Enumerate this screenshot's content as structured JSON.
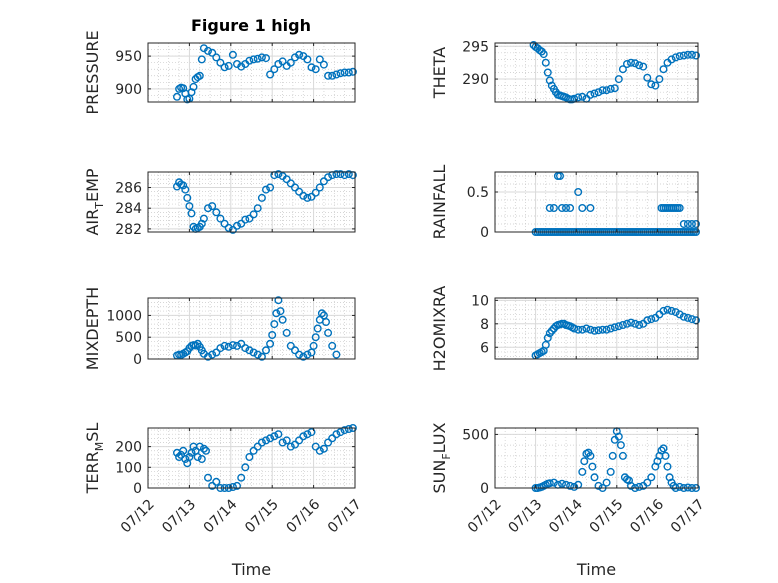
{
  "figure": {
    "title": "Figure 1 high",
    "marker_color": "#0072BD"
  },
  "chart_data": [
    {
      "type": "scatter",
      "ylabel": "PRESSURE",
      "xlabel": "",
      "title": "Figure 1 high",
      "xlim": [
        0,
        5
      ],
      "ylim": [
        880,
        970
      ],
      "yticks": [
        900,
        950
      ],
      "xticks": [],
      "x": [
        0.7,
        0.75,
        0.8,
        0.85,
        0.9,
        0.95,
        1.0,
        1.05,
        1.1,
        1.15,
        1.2,
        1.25,
        1.3,
        1.35,
        1.45,
        1.55,
        1.65,
        1.75,
        1.85,
        1.95,
        2.05,
        2.15,
        2.25,
        2.35,
        2.45,
        2.55,
        2.65,
        2.75,
        2.85,
        2.95,
        3.05,
        3.15,
        3.25,
        3.35,
        3.45,
        3.55,
        3.65,
        3.75,
        3.85,
        3.95,
        4.05,
        4.15,
        4.25,
        4.35,
        4.45,
        4.55,
        4.65,
        4.75,
        4.85,
        4.95
      ],
      "y": [
        888,
        900,
        902,
        901,
        893,
        884,
        885,
        895,
        903,
        915,
        918,
        920,
        945,
        962,
        958,
        955,
        948,
        940,
        933,
        935,
        952,
        938,
        934,
        938,
        943,
        945,
        946,
        948,
        947,
        922,
        930,
        938,
        942,
        935,
        940,
        948,
        952,
        950,
        945,
        933,
        930,
        945,
        937,
        920,
        920,
        922,
        924,
        925,
        925,
        926
      ]
    },
    {
      "type": "scatter",
      "ylabel": "THETA",
      "xlabel": "",
      "xlim": [
        0,
        5
      ],
      "ylim": [
        286.5,
        295.5
      ],
      "yticks": [
        290,
        295
      ],
      "xticks": [],
      "x": [
        0.95,
        1.0,
        1.05,
        1.1,
        1.15,
        1.2,
        1.25,
        1.3,
        1.35,
        1.4,
        1.45,
        1.5,
        1.55,
        1.6,
        1.65,
        1.7,
        1.75,
        1.8,
        1.85,
        1.9,
        1.95,
        2.05,
        2.15,
        2.25,
        2.35,
        2.45,
        2.55,
        2.65,
        2.75,
        2.85,
        2.95,
        3.05,
        3.15,
        3.25,
        3.35,
        3.45,
        3.55,
        3.65,
        3.75,
        3.85,
        3.95,
        4.05,
        4.15,
        4.25,
        4.35,
        4.45,
        4.55,
        4.65,
        4.75,
        4.85,
        4.95
      ],
      "y": [
        295.2,
        294.9,
        294.7,
        294.4,
        294.2,
        293.8,
        292.5,
        291.0,
        289.8,
        289.0,
        288.5,
        288.0,
        287.6,
        287.5,
        287.4,
        287.3,
        287.2,
        287.0,
        286.9,
        286.9,
        287.0,
        287.2,
        287.3,
        287.0,
        287.6,
        287.8,
        288.0,
        288.3,
        288.3,
        288.5,
        288.6,
        290.0,
        291.5,
        292.3,
        292.5,
        292.4,
        292.1,
        291.9,
        290.2,
        289.2,
        289.0,
        290.0,
        291.5,
        292.5,
        293.0,
        293.3,
        293.5,
        293.6,
        293.7,
        293.7,
        293.6
      ]
    },
    {
      "type": "scatter",
      "ylabel": "AIR_TEMP",
      "xlabel": "",
      "xlim": [
        0,
        5
      ],
      "ylim": [
        281.7,
        287.5
      ],
      "yticks": [
        282,
        284,
        286
      ],
      "xticks": [],
      "x": [
        0.7,
        0.75,
        0.8,
        0.85,
        0.9,
        0.95,
        1.0,
        1.05,
        1.1,
        1.15,
        1.2,
        1.25,
        1.3,
        1.35,
        1.45,
        1.55,
        1.65,
        1.75,
        1.85,
        1.95,
        2.05,
        2.15,
        2.25,
        2.35,
        2.45,
        2.55,
        2.65,
        2.75,
        2.85,
        2.95,
        3.05,
        3.15,
        3.25,
        3.35,
        3.45,
        3.55,
        3.65,
        3.75,
        3.85,
        3.95,
        4.05,
        4.15,
        4.25,
        4.35,
        4.45,
        4.55,
        4.65,
        4.75,
        4.85,
        4.95
      ],
      "y": [
        286.1,
        286.5,
        286.3,
        286.2,
        285.8,
        285.0,
        284.2,
        283.5,
        282.2,
        282.0,
        282.1,
        282.2,
        282.5,
        283.0,
        284.0,
        284.2,
        283.6,
        283.0,
        282.5,
        282.1,
        281.9,
        282.3,
        282.5,
        282.9,
        283.0,
        283.4,
        284.0,
        285.0,
        285.8,
        286.0,
        287.2,
        287.3,
        287.1,
        286.8,
        286.4,
        286.0,
        285.6,
        285.2,
        285.0,
        285.1,
        285.5,
        286.0,
        286.6,
        287.0,
        287.2,
        287.3,
        287.3,
        287.2,
        287.3,
        287.2
      ]
    },
    {
      "type": "scatter",
      "ylabel": "RAINFALL",
      "xlabel": "",
      "xlim": [
        0,
        5
      ],
      "ylim": [
        0,
        0.75
      ],
      "yticks": [
        0,
        0.5
      ],
      "xticks": [],
      "x": [
        1.0,
        1.05,
        1.1,
        1.15,
        1.2,
        1.25,
        1.3,
        1.35,
        1.4,
        1.45,
        1.5,
        1.55,
        1.6,
        1.65,
        1.7,
        1.75,
        1.8,
        1.85,
        1.9,
        1.95,
        2.0,
        2.05,
        2.1,
        2.15,
        2.2,
        2.25,
        2.3,
        2.35,
        2.4,
        2.45,
        2.5,
        2.55,
        2.6,
        2.65,
        2.7,
        2.75,
        2.8,
        2.85,
        2.9,
        2.95,
        3.0,
        3.05,
        3.1,
        3.15,
        3.2,
        3.25,
        3.3,
        3.35,
        3.4,
        3.45,
        3.5,
        3.55,
        3.6,
        3.65,
        3.7,
        3.75,
        3.8,
        3.85,
        3.9,
        3.95,
        4.0,
        4.05,
        4.1,
        4.15,
        4.2,
        4.25,
        4.3,
        4.35,
        4.4,
        4.45,
        4.5,
        4.55,
        4.6,
        4.65,
        4.7,
        4.75,
        4.8,
        4.85,
        4.9,
        4.95,
        1.35,
        1.45,
        1.55,
        1.6,
        1.65,
        1.75,
        1.85,
        2.05,
        2.15,
        2.35,
        4.1,
        4.15,
        4.2,
        4.25,
        4.3,
        4.35,
        4.4,
        4.45,
        4.5,
        4.55,
        4.65,
        4.75,
        4.85,
        4.95
      ],
      "y": [
        0,
        0,
        0,
        0,
        0,
        0,
        0,
        0,
        0,
        0,
        0,
        0,
        0,
        0,
        0,
        0,
        0,
        0,
        0,
        0,
        0,
        0,
        0,
        0,
        0,
        0,
        0,
        0,
        0,
        0,
        0,
        0,
        0,
        0,
        0,
        0,
        0,
        0,
        0,
        0,
        0,
        0,
        0,
        0,
        0,
        0,
        0,
        0,
        0,
        0,
        0,
        0,
        0,
        0,
        0,
        0,
        0,
        0,
        0,
        0,
        0,
        0,
        0,
        0,
        0,
        0,
        0,
        0,
        0,
        0,
        0,
        0,
        0,
        0,
        0,
        0,
        0,
        0,
        0,
        0,
        0.3,
        0.3,
        0.7,
        0.7,
        0.3,
        0.3,
        0.3,
        0.5,
        0.3,
        0.3,
        0.3,
        0.3,
        0.3,
        0.3,
        0.3,
        0.3,
        0.3,
        0.3,
        0.3,
        0.3,
        0.1,
        0.1,
        0.1,
        0.1
      ]
    },
    {
      "type": "scatter",
      "ylabel": "MIXDEPTH",
      "xlabel": "",
      "xlim": [
        0,
        5
      ],
      "ylim": [
        0,
        1400
      ],
      "yticks": [
        0,
        500,
        1000
      ],
      "xticks": [],
      "x": [
        0.7,
        0.75,
        0.8,
        0.85,
        0.9,
        0.95,
        1.0,
        1.05,
        1.1,
        1.15,
        1.2,
        1.25,
        1.3,
        1.35,
        1.45,
        1.55,
        1.65,
        1.75,
        1.85,
        1.95,
        2.05,
        2.15,
        2.25,
        2.35,
        2.45,
        2.55,
        2.65,
        2.75,
        2.85,
        2.95,
        3.0,
        3.05,
        3.1,
        3.15,
        3.2,
        3.25,
        3.35,
        3.45,
        3.55,
        3.65,
        3.75,
        3.85,
        3.95,
        4.0,
        4.05,
        4.1,
        4.15,
        4.2,
        4.25,
        4.3,
        4.35,
        4.45,
        4.55
      ],
      "y": [
        80,
        100,
        90,
        120,
        150,
        180,
        250,
        300,
        320,
        310,
        350,
        280,
        200,
        120,
        50,
        100,
        150,
        250,
        300,
        280,
        320,
        300,
        350,
        250,
        200,
        150,
        100,
        50,
        200,
        350,
        550,
        800,
        1050,
        1350,
        1100,
        900,
        600,
        300,
        200,
        100,
        50,
        100,
        150,
        300,
        500,
        700,
        900,
        1050,
        1000,
        850,
        600,
        300,
        100
      ]
    },
    {
      "type": "scatter",
      "ylabel": "H2OMIXRA",
      "xlabel": "",
      "xlim": [
        0,
        5
      ],
      "ylim": [
        5,
        10.2
      ],
      "yticks": [
        6,
        8,
        10
      ],
      "xticks": [],
      "x": [
        1.0,
        1.05,
        1.1,
        1.15,
        1.2,
        1.25,
        1.3,
        1.35,
        1.4,
        1.45,
        1.5,
        1.55,
        1.6,
        1.65,
        1.7,
        1.75,
        1.8,
        1.85,
        1.9,
        1.95,
        2.05,
        2.15,
        2.25,
        2.35,
        2.45,
        2.55,
        2.65,
        2.75,
        2.85,
        2.95,
        3.05,
        3.15,
        3.25,
        3.35,
        3.45,
        3.55,
        3.65,
        3.75,
        3.85,
        3.95,
        4.05,
        4.15,
        4.25,
        4.35,
        4.45,
        4.55,
        4.65,
        4.75,
        4.85,
        4.95
      ],
      "y": [
        5.3,
        5.4,
        5.5,
        5.6,
        5.7,
        6.2,
        6.8,
        7.2,
        7.4,
        7.6,
        7.8,
        7.9,
        7.95,
        8.0,
        8.0,
        7.9,
        7.85,
        7.8,
        7.7,
        7.6,
        7.5,
        7.5,
        7.6,
        7.5,
        7.4,
        7.45,
        7.5,
        7.5,
        7.6,
        7.7,
        7.8,
        7.9,
        8.0,
        8.1,
        8.0,
        7.9,
        8.0,
        8.3,
        8.4,
        8.5,
        8.8,
        9.1,
        9.2,
        9.1,
        9.0,
        8.8,
        8.6,
        8.5,
        8.4,
        8.3
      ]
    },
    {
      "type": "scatter",
      "ylabel": "TERR_MSL",
      "xlabel": "Time",
      "xlim": [
        0,
        5
      ],
      "ylim": [
        0,
        290
      ],
      "yticks": [
        0,
        100,
        200
      ],
      "xticks": [
        "07/12",
        "07/13",
        "07/14",
        "07/15",
        "07/16",
        "07/17"
      ],
      "x": [
        0.7,
        0.75,
        0.8,
        0.85,
        0.9,
        0.95,
        1.0,
        1.05,
        1.1,
        1.15,
        1.2,
        1.25,
        1.3,
        1.35,
        1.4,
        1.45,
        1.55,
        1.65,
        1.75,
        1.85,
        1.95,
        2.05,
        2.15,
        2.25,
        2.35,
        2.45,
        2.55,
        2.65,
        2.75,
        2.85,
        2.95,
        3.05,
        3.15,
        3.25,
        3.35,
        3.45,
        3.55,
        3.65,
        3.75,
        3.85,
        3.95,
        4.05,
        4.15,
        4.25,
        4.35,
        4.45,
        4.55,
        4.65,
        4.75,
        4.85,
        4.95
      ],
      "y": [
        170,
        150,
        160,
        180,
        140,
        120,
        150,
        170,
        200,
        180,
        150,
        200,
        140,
        190,
        180,
        50,
        10,
        30,
        0,
        0,
        0,
        5,
        10,
        50,
        100,
        150,
        180,
        200,
        220,
        230,
        240,
        250,
        260,
        220,
        230,
        200,
        210,
        230,
        250,
        260,
        270,
        200,
        180,
        190,
        220,
        240,
        260,
        270,
        280,
        285,
        290
      ]
    },
    {
      "type": "scatter",
      "ylabel": "SUN_FLUX",
      "xlabel": "Time",
      "xlim": [
        0,
        5
      ],
      "ylim": [
        0,
        560
      ],
      "yticks": [
        0,
        500
      ],
      "xticks": [
        "07/12",
        "07/13",
        "07/14",
        "07/15",
        "07/16",
        "07/17"
      ],
      "x": [
        1.0,
        1.05,
        1.1,
        1.15,
        1.2,
        1.25,
        1.3,
        1.35,
        1.45,
        1.55,
        1.65,
        1.75,
        1.85,
        1.95,
        2.05,
        2.15,
        2.2,
        2.25,
        2.3,
        2.35,
        2.4,
        2.45,
        2.55,
        2.65,
        2.75,
        2.85,
        2.9,
        2.95,
        3.0,
        3.05,
        3.1,
        3.15,
        3.2,
        3.25,
        3.3,
        3.35,
        3.45,
        3.55,
        3.65,
        3.75,
        3.85,
        3.95,
        4.0,
        4.05,
        4.1,
        4.15,
        4.2,
        4.25,
        4.3,
        4.35,
        4.4,
        4.45,
        4.55,
        4.65,
        4.75,
        4.85,
        4.95
      ],
      "y": [
        0,
        0,
        5,
        10,
        20,
        30,
        40,
        45,
        50,
        30,
        40,
        30,
        20,
        10,
        30,
        150,
        250,
        320,
        330,
        300,
        200,
        100,
        20,
        0,
        50,
        150,
        300,
        450,
        530,
        480,
        400,
        300,
        100,
        80,
        70,
        20,
        0,
        10,
        20,
        50,
        100,
        200,
        250,
        300,
        350,
        370,
        300,
        200,
        100,
        50,
        20,
        0,
        10,
        0,
        5,
        0,
        0
      ]
    }
  ]
}
